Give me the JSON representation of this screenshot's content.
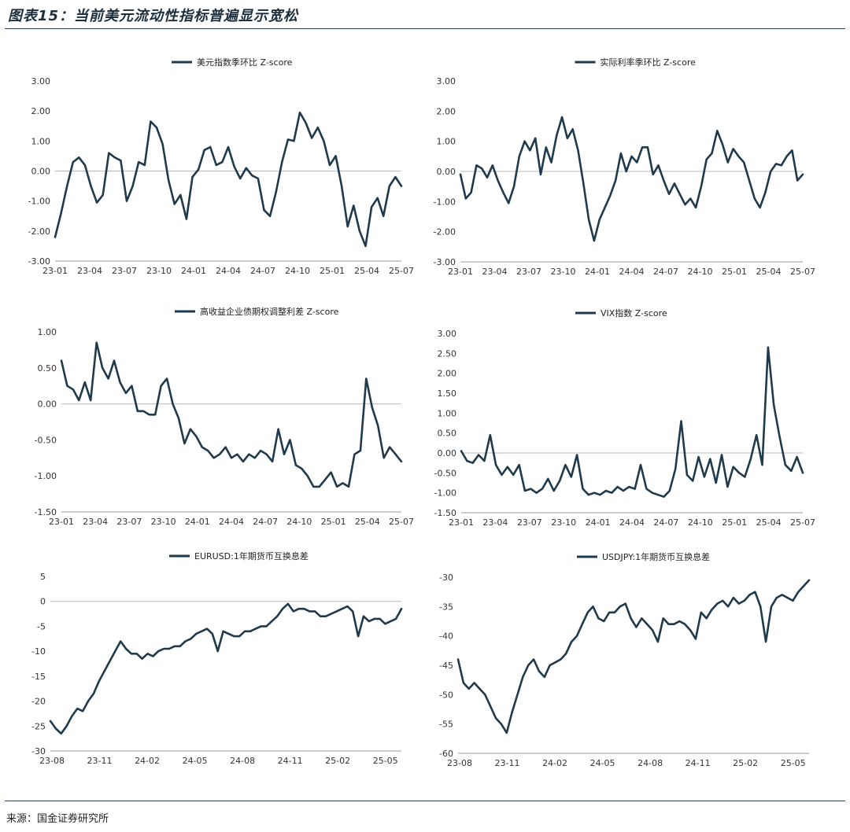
{
  "page_title": "图表15：当前美元流动性指标普遍显示宽松",
  "source": "来源：国金证券研究所",
  "colors": {
    "line": "#1e3a4c",
    "zero": "#bbbbbb"
  },
  "chart_data": [
    {
      "type": "line",
      "title": "",
      "legend": "美元指数季环比 Z-score",
      "ylim": [
        -3,
        3
      ],
      "yticks": [
        -3,
        -2,
        -1,
        0,
        1,
        2,
        3
      ],
      "ytick_labels": [
        "-3.00",
        "-2.00",
        "-1.00",
        "0.00",
        "1.00",
        "2.00",
        "3.00"
      ],
      "xtick_labels": [
        "23-01",
        "23-04",
        "23-07",
        "23-10",
        "24-01",
        "24-04",
        "24-07",
        "24-10",
        "25-01",
        "25-04",
        "25-07"
      ],
      "xlim": [
        0,
        30
      ],
      "series": [
        {
          "name": "美元指数季环比 Z-score",
          "values": [
            -2.2,
            -1.4,
            -0.5,
            0.3,
            0.45,
            0.2,
            -0.5,
            -1.05,
            -0.8,
            0.6,
            0.45,
            0.35,
            -1.0,
            -0.5,
            0.3,
            0.2,
            1.65,
            1.45,
            0.9,
            -0.3,
            -1.1,
            -0.8,
            -1.6,
            -0.2,
            0.05,
            0.7,
            0.8,
            0.2,
            0.3,
            0.8,
            0.15,
            -0.25,
            0.1,
            -0.15,
            -0.25,
            -1.3,
            -1.5,
            -0.7,
            0.3,
            1.05,
            1.0,
            1.95,
            1.6,
            1.1,
            1.45,
            1.0,
            0.2,
            0.5,
            -0.5,
            -1.85,
            -1.15,
            -2.0,
            -2.5,
            -1.2,
            -0.9,
            -1.5,
            -0.5,
            -0.2,
            -0.5
          ]
        }
      ]
    },
    {
      "type": "line",
      "legend": "实际利率季环比 Z-score",
      "ylim": [
        -3,
        3
      ],
      "yticks": [
        -3,
        -2,
        -1,
        0,
        1,
        2,
        3
      ],
      "ytick_labels": [
        "-3.00",
        "-2.00",
        "-1.00",
        "0.00",
        "1.00",
        "2.00",
        "3.00"
      ],
      "xtick_labels": [
        "23-01",
        "23-04",
        "23-07",
        "23-10",
        "24-01",
        "24-04",
        "24-07",
        "24-10",
        "25-01",
        "25-04",
        "25-07"
      ],
      "xlim": [
        0,
        30
      ],
      "series": [
        {
          "name": "实际利率季环比 Z-score",
          "values": [
            -0.1,
            -0.9,
            -0.7,
            0.2,
            0.1,
            -0.2,
            0.2,
            -0.3,
            -0.7,
            -1.05,
            -0.5,
            0.5,
            1.0,
            0.7,
            1.1,
            -0.1,
            0.8,
            0.3,
            1.2,
            1.8,
            1.1,
            1.4,
            0.7,
            -0.4,
            -1.6,
            -2.3,
            -1.6,
            -1.2,
            -0.8,
            -0.3,
            0.6,
            0.0,
            0.5,
            0.3,
            0.8,
            0.8,
            -0.1,
            0.2,
            -0.3,
            -0.75,
            -0.4,
            -0.75,
            -1.1,
            -0.9,
            -1.2,
            -0.5,
            0.4,
            0.6,
            1.35,
            0.9,
            0.3,
            0.75,
            0.5,
            0.3,
            -0.3,
            -0.9,
            -1.2,
            -0.7,
            0.0,
            0.25,
            0.2,
            0.5,
            0.7,
            -0.3,
            -0.1
          ]
        }
      ]
    },
    {
      "type": "line",
      "legend": "高收益企业债期权调整利差 Z-score",
      "ylim": [
        -1.5,
        1
      ],
      "yticks": [
        -1.5,
        -1,
        -0.5,
        0,
        0.5,
        1
      ],
      "ytick_labels": [
        "-1.50",
        "-1.00",
        "-0.50",
        "0.00",
        "0.50",
        "1.00"
      ],
      "xtick_labels": [
        "23-01",
        "23-04",
        "23-07",
        "23-10",
        "24-01",
        "24-04",
        "24-07",
        "24-10",
        "25-01",
        "25-04",
        "25-07"
      ],
      "xlim": [
        0,
        30
      ],
      "series": [
        {
          "name": "高收益企业债期权调整利差 Z-score",
          "values": [
            0.6,
            0.25,
            0.2,
            0.05,
            0.3,
            0.05,
            0.85,
            0.5,
            0.35,
            0.6,
            0.3,
            0.15,
            0.25,
            -0.1,
            -0.1,
            -0.15,
            -0.15,
            0.25,
            0.35,
            0.0,
            -0.2,
            -0.55,
            -0.35,
            -0.45,
            -0.6,
            -0.65,
            -0.75,
            -0.7,
            -0.6,
            -0.75,
            -0.7,
            -0.8,
            -0.7,
            -0.75,
            -0.65,
            -0.7,
            -0.8,
            -0.35,
            -0.7,
            -0.5,
            -0.85,
            -0.9,
            -1.0,
            -1.15,
            -1.15,
            -1.05,
            -0.95,
            -1.15,
            -1.1,
            -1.15,
            -0.7,
            -0.65,
            0.35,
            -0.05,
            -0.3,
            -0.75,
            -0.6,
            -0.7,
            -0.8
          ]
        }
      ]
    },
    {
      "type": "line",
      "legend": "VIX指数 Z-score",
      "ylim": [
        -1.5,
        3
      ],
      "yticks": [
        -1.5,
        -1,
        -0.5,
        0,
        0.5,
        1,
        1.5,
        2,
        2.5,
        3
      ],
      "ytick_labels": [
        "-1.50",
        "-1.00",
        "-0.50",
        "0.00",
        "0.50",
        "1.00",
        "1.50",
        "2.00",
        "2.50",
        "3.00"
      ],
      "xtick_labels": [
        "23-01",
        "23-04",
        "23-07",
        "23-10",
        "24-01",
        "24-04",
        "24-07",
        "24-10",
        "25-01",
        "25-04",
        "25-07"
      ],
      "xlim": [
        0,
        30
      ],
      "series": [
        {
          "name": "VIX指数 Z-score",
          "values": [
            0.05,
            -0.2,
            -0.25,
            -0.05,
            -0.2,
            0.45,
            -0.3,
            -0.55,
            -0.35,
            -0.55,
            -0.3,
            -0.95,
            -0.9,
            -1.0,
            -0.9,
            -0.65,
            -0.95,
            -0.7,
            -0.3,
            -0.6,
            -0.05,
            -0.9,
            -1.05,
            -1.0,
            -1.05,
            -0.95,
            -1.0,
            -0.85,
            -0.95,
            -0.85,
            -0.9,
            -0.3,
            -0.9,
            -1.0,
            -1.05,
            -1.1,
            -0.95,
            -0.4,
            0.8,
            -0.55,
            -0.7,
            -0.1,
            -0.6,
            -0.15,
            -0.75,
            -0.05,
            -0.85,
            -0.35,
            -0.5,
            -0.6,
            -0.15,
            0.45,
            -0.3,
            2.65,
            1.2,
            0.4,
            -0.3,
            -0.45,
            -0.1,
            -0.5
          ]
        }
      ]
    },
    {
      "type": "line",
      "legend": "EURUSD:1年期货币互换息差",
      "ylim": [
        -30,
        5
      ],
      "yticks": [
        -30,
        -25,
        -20,
        -15,
        -10,
        -5,
        0,
        5
      ],
      "ytick_labels": [
        "-30",
        "-25",
        "-20",
        "-15",
        "-10",
        "-5",
        "0",
        "5"
      ],
      "xtick_labels": [
        "23-08",
        "23-11",
        "24-02",
        "24-05",
        "24-08",
        "24-11",
        "25-02",
        "25-05"
      ],
      "xlim": [
        0,
        24
      ],
      "series": [
        {
          "name": "EURUSD:1年期货币互换息差",
          "values": [
            -24,
            -25.5,
            -26.5,
            -25,
            -23,
            -21.5,
            -22,
            -20,
            -18.5,
            -16,
            -14,
            -12,
            -10,
            -8,
            -9.5,
            -10.5,
            -10.5,
            -11.5,
            -10.5,
            -11,
            -10,
            -9.5,
            -9.5,
            -9,
            -9,
            -8,
            -7.5,
            -6.5,
            -6,
            -5.5,
            -6.5,
            -10,
            -6,
            -6.5,
            -7,
            -7,
            -6,
            -6,
            -5.5,
            -5,
            -5,
            -4,
            -3,
            -1.5,
            -0.5,
            -2,
            -1.5,
            -1.5,
            -2,
            -2,
            -3,
            -3,
            -2.5,
            -2,
            -1.5,
            -1,
            -2,
            -7,
            -3,
            -4,
            -3.5,
            -3.5,
            -4.5,
            -4,
            -3.5,
            -1.5
          ]
        }
      ]
    },
    {
      "type": "line",
      "legend": "USDJPY:1年期货币互换息差",
      "ylim": [
        -60,
        -30
      ],
      "yticks": [
        -60,
        -55,
        -50,
        -45,
        -40,
        -35,
        -30
      ],
      "ytick_labels": [
        "-60",
        "-55",
        "-50",
        "-45",
        "-40",
        "-35",
        "-30"
      ],
      "xtick_labels": [
        "23-08",
        "23-11",
        "24-02",
        "24-05",
        "24-08",
        "24-11",
        "25-02",
        "25-05"
      ],
      "xlim": [
        0,
        24
      ],
      "series": [
        {
          "name": "USDJPY:1年期货币互换息差",
          "values": [
            -44,
            -48,
            -49,
            -48,
            -49,
            -50,
            -52,
            -54,
            -55,
            -56.5,
            -53,
            -50,
            -47,
            -45,
            -44,
            -46,
            -47,
            -45,
            -44.5,
            -44,
            -43,
            -41,
            -40,
            -38,
            -36,
            -35,
            -37,
            -37.5,
            -36,
            -36,
            -35,
            -34.5,
            -37,
            -38.5,
            -37,
            -38,
            -39,
            -41,
            -37,
            -38,
            -38,
            -37.5,
            -38,
            -39,
            -40.5,
            -36,
            -37,
            -35.5,
            -34.5,
            -34,
            -35,
            -33.5,
            -34.5,
            -34,
            -33,
            -32.5,
            -35,
            -41,
            -35,
            -33.5,
            -33,
            -33.5,
            -34,
            -32.5,
            -31.5,
            -30.5
          ]
        }
      ]
    }
  ]
}
